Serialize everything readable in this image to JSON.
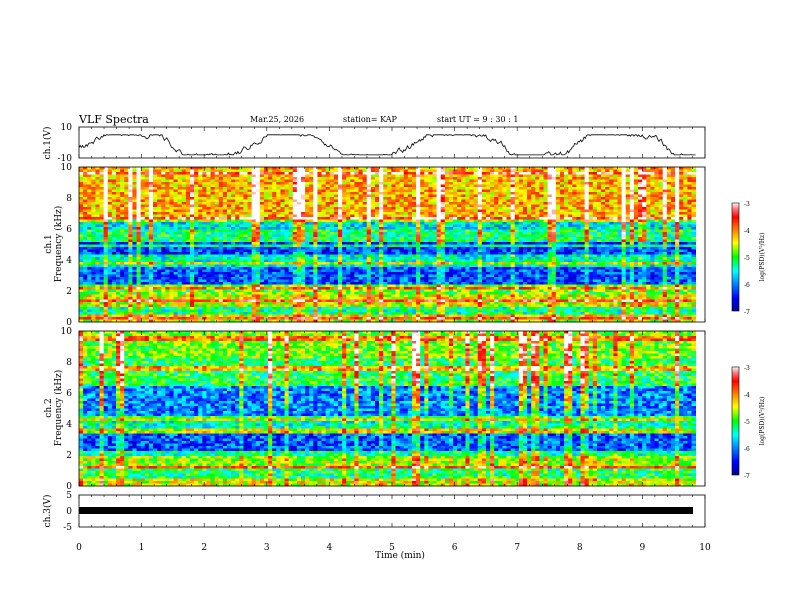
{
  "header": {
    "title": "VLF Spectra",
    "date": "Mar.25, 2026",
    "station": "station= KAP",
    "start": "start  UT  =   9 : 30 : 1"
  },
  "chart_data": [
    {
      "type": "line",
      "name": "ch1-waveform",
      "ylabel": "ch.1(V)",
      "ylim": [
        -10,
        10
      ],
      "yticks": [
        "10",
        "-10"
      ],
      "x_range_min": [
        0,
        9.85
      ],
      "note": "noisy trace oscillating roughly between -7 and 4 V"
    },
    {
      "type": "heatmap",
      "name": "ch1-spectrogram",
      "ylabel": "ch.1\nFrequency (kHz)",
      "ylim": [
        0,
        10
      ],
      "yticks": [
        "10",
        "8",
        "6",
        "4",
        "2",
        "0"
      ],
      "colorbar": {
        "label": "log(PSD)(V²/Hz)",
        "range": [
          -7,
          -3
        ],
        "ticks": [
          "-3",
          "-4",
          "-5",
          "-6",
          "-7"
        ]
      },
      "bands_khz": [
        {
          "from": 0.0,
          "to": 0.4,
          "level": -4.6
        },
        {
          "from": 0.4,
          "to": 1.0,
          "level": -5.3
        },
        {
          "from": 1.0,
          "to": 1.8,
          "level": -4.5
        },
        {
          "from": 1.8,
          "to": 2.4,
          "level": -4.9
        },
        {
          "from": 2.4,
          "to": 3.6,
          "level": -6.2
        },
        {
          "from": 3.6,
          "to": 4.4,
          "level": -5.5
        },
        {
          "from": 4.4,
          "to": 5.2,
          "level": -6.3
        },
        {
          "from": 5.2,
          "to": 6.0,
          "level": -5.2
        },
        {
          "from": 6.0,
          "to": 6.6,
          "level": -5.6
        },
        {
          "from": 6.6,
          "to": 10.0,
          "level": -4.2
        }
      ],
      "lines_khz": [
        0.3,
        1.4,
        2.2,
        3.8,
        4.9,
        6.6,
        9.6
      ]
    },
    {
      "type": "heatmap",
      "name": "ch2-spectrogram",
      "ylabel": "ch.2\nFrequency (kHz)",
      "ylim": [
        0,
        10
      ],
      "yticks": [
        "10",
        "8",
        "6",
        "4",
        "2",
        "0"
      ],
      "colorbar": {
        "label": "log(PSD)(V²/Hz)",
        "range": [
          -7,
          -3
        ],
        "ticks": [
          "-3",
          "-4",
          "-5",
          "-6",
          "-7"
        ]
      },
      "bands_khz": [
        {
          "from": 0.0,
          "to": 0.5,
          "level": -4.5
        },
        {
          "from": 0.5,
          "to": 1.2,
          "level": -5.2
        },
        {
          "from": 1.2,
          "to": 2.0,
          "level": -4.7
        },
        {
          "from": 2.0,
          "to": 3.4,
          "level": -6.2
        },
        {
          "from": 3.4,
          "to": 4.4,
          "level": -5.4
        },
        {
          "from": 4.4,
          "to": 6.4,
          "level": -6.0
        },
        {
          "from": 6.4,
          "to": 8.2,
          "level": -5.1
        },
        {
          "from": 8.2,
          "to": 10.0,
          "level": -4.8
        }
      ],
      "lines_khz": [
        1.2,
        2.1,
        3.5,
        4.4,
        7.6,
        9.5
      ]
    },
    {
      "type": "line",
      "name": "ch3-waveform",
      "ylabel": "ch.3(V)",
      "ylim": [
        -5,
        5
      ],
      "yticks": [
        "5",
        "0",
        "-5"
      ],
      "note": "saturated flat band near 0 V"
    }
  ],
  "xaxis": {
    "label": "Time  (min)",
    "range": [
      0,
      10
    ],
    "ticks": [
      "0",
      "1",
      "2",
      "3",
      "4",
      "5",
      "6",
      "7",
      "8",
      "9",
      "10"
    ]
  }
}
